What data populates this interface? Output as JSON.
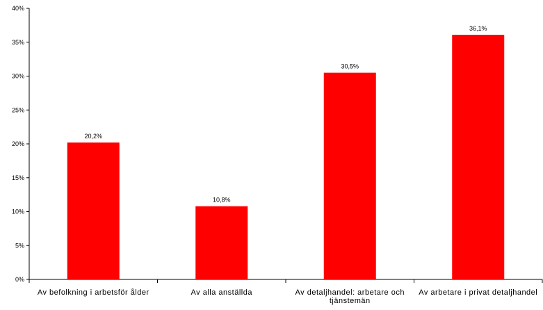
{
  "chart_data": {
    "type": "bar",
    "categories": [
      "Av befolkning i arbetsför ålder",
      "Av alla anställda",
      "Av detaljhandel: arbetare och tjänstemän",
      "Av arbetare i privat detaljhandel"
    ],
    "values": [
      20.2,
      10.8,
      30.5,
      36.1
    ],
    "value_labels": [
      "20,2%",
      "10,8%",
      "30,5%",
      "36,1%"
    ],
    "y_ticks": [
      "0%",
      "5%",
      "10%",
      "15%",
      "20%",
      "25%",
      "30%",
      "35%",
      "40%"
    ],
    "ylim": [
      0,
      40
    ],
    "grid": false,
    "bar_color": "#ff0000"
  }
}
